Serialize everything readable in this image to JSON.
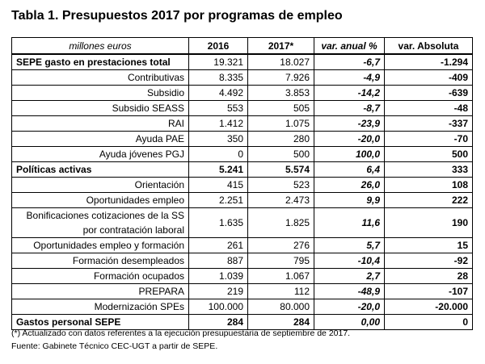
{
  "title": "Tabla 1. Presupuestos 2017 por programas de empleo",
  "table": {
    "header": [
      "millones euros",
      "2016",
      "2017*",
      "var. anual %",
      "var. Absoluta"
    ],
    "rows": [
      [
        "SEPE gasto en prestaciones total",
        "19.321",
        "18.027",
        "-6,7",
        "-1.294"
      ],
      [
        "Contributivas",
        "8.335",
        "7.926",
        "-4,9",
        "-409"
      ],
      [
        "Subsidio",
        "4.492",
        "3.853",
        "-14,2",
        "-639"
      ],
      [
        "Subsidio SEASS",
        "553",
        "505",
        "-8,7",
        "-48"
      ],
      [
        "RAI",
        "1.412",
        "1.075",
        "-23,9",
        "-337"
      ],
      [
        "Ayuda PAE",
        "350",
        "280",
        "-20,0",
        "-70"
      ],
      [
        "Ayuda jóvenes PGJ",
        "0",
        "500",
        "100,0",
        "500"
      ],
      [
        "Políticas activas",
        "5.241",
        "5.574",
        "6,4",
        "333"
      ],
      [
        "Orientación",
        "415",
        "523",
        "26,0",
        "108"
      ],
      [
        "Oportunidades empleo",
        "2.251",
        "2.473",
        "9,9",
        "222"
      ],
      [
        "Bonificaciones cotizaciones de la SS por contratación laboral",
        "1.635",
        "1.825",
        "11,6",
        "190"
      ],
      [
        "Oportunidades empleo y formación",
        "261",
        "276",
        "5,7",
        "15"
      ],
      [
        "Formación desempleados",
        "887",
        "795",
        "-10,4",
        "-92"
      ],
      [
        "Formación ocupados",
        "1.039",
        "1.067",
        "2,7",
        "28"
      ],
      [
        "PREPARA",
        "219",
        "112",
        "-48,9",
        "-107"
      ],
      [
        "Modernización SPEs",
        "100.000",
        "80.000",
        "-20,0",
        "-20.000"
      ],
      [
        "Gastos personal SEPE",
        "284",
        "284",
        "0,00",
        "0"
      ]
    ]
  },
  "notes": [
    "(*) Actualizado con datos referentes a la ejecución presupuestaria de septiembre de 2017.",
    "Fuente: Gabinete Técnico CEC-UGT a partir de SEPE."
  ]
}
